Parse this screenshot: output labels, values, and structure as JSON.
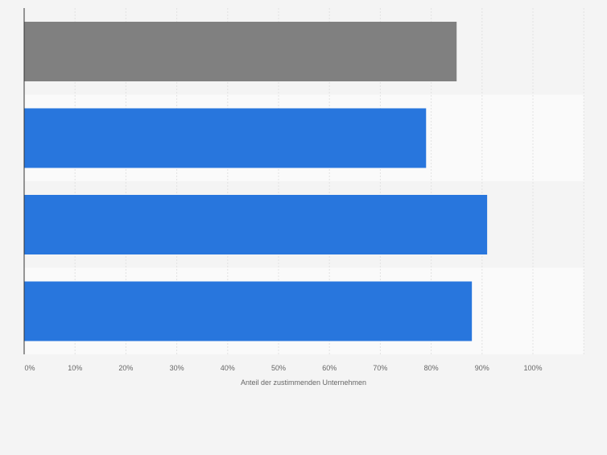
{
  "chart_data": {
    "type": "bar",
    "orientation": "horizontal",
    "categories": [
      "",
      "",
      "",
      ""
    ],
    "values": [
      85,
      79,
      91,
      88
    ],
    "xlabel": "Anteil der zustimmenden Unternehmen",
    "ylabel": "",
    "xlim": [
      0,
      110
    ],
    "ticks": [
      0,
      10,
      20,
      30,
      40,
      50,
      60,
      70,
      80,
      90,
      100
    ],
    "tick_labels": [
      "0%",
      "10%",
      "20%",
      "30%",
      "40%",
      "50%",
      "60%",
      "70%",
      "80%",
      "90%",
      "100%"
    ],
    "grid": true,
    "bar_colors": [
      "#808080",
      "#2876dd",
      "#2876dd",
      "#2876dd"
    ],
    "band_colors": [
      "#f4f4f4",
      "#fafafa"
    ],
    "grid_color": "#e2e2e2",
    "axis_color": "#333333",
    "text_color": "#666666"
  }
}
